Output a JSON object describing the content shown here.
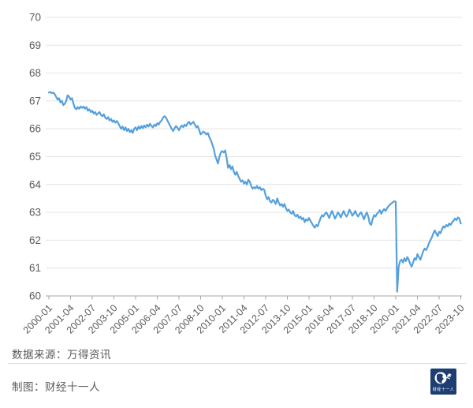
{
  "chart_data": {
    "type": "line",
    "title": "",
    "x_start": "2000-01",
    "x_end": "2023-10",
    "x_frequency": "monthly",
    "x_tick_step_months": 15,
    "x_tick_labels": [
      "2000-01",
      "2001-04",
      "2002-07",
      "2003-10",
      "2005-01",
      "2006-04",
      "2007-07",
      "2008-10",
      "2010-01",
      "2011-04",
      "2012-07",
      "2013-10",
      "2015-01",
      "2016-04",
      "2017-07",
      "2018-10",
      "2020-01",
      "2021-04",
      "2022-07",
      "2023-10"
    ],
    "y_ticks": [
      60,
      61,
      62,
      63,
      64,
      65,
      66,
      67,
      68,
      69,
      70
    ],
    "ylim": [
      60,
      70
    ],
    "grid": true,
    "legend": false,
    "line_color": "#55a0dc",
    "grid_color": "#e4e4e4",
    "axis_color": "#a6a6a6",
    "label_color": "#5c5c5c",
    "values": [
      67.3,
      67.32,
      67.28,
      67.3,
      67.25,
      67.15,
      67.05,
      67.1,
      66.95,
      67.0,
      66.85,
      66.9,
      67.0,
      67.2,
      67.15,
      67.05,
      67.1,
      66.9,
      66.75,
      66.7,
      66.78,
      66.72,
      66.8,
      66.75,
      66.8,
      66.72,
      66.78,
      66.65,
      66.7,
      66.6,
      66.65,
      66.55,
      66.6,
      66.5,
      66.55,
      66.6,
      66.5,
      66.45,
      66.52,
      66.4,
      66.35,
      66.42,
      66.3,
      66.35,
      66.25,
      66.3,
      66.22,
      66.28,
      66.2,
      66.1,
      66.0,
      66.08,
      65.95,
      66.05,
      65.92,
      66.0,
      65.88,
      65.95,
      65.85,
      66.0,
      66.05,
      65.95,
      66.08,
      66.0,
      66.1,
      66.02,
      66.12,
      66.05,
      66.15,
      66.08,
      66.18,
      66.1,
      66.05,
      66.15,
      66.1,
      66.2,
      66.15,
      66.25,
      66.3,
      66.4,
      66.45,
      66.4,
      66.3,
      66.2,
      66.1,
      66.0,
      65.92,
      66.02,
      66.1,
      66.03,
      65.95,
      66.05,
      66.12,
      66.06,
      66.15,
      66.1,
      66.2,
      66.25,
      66.15,
      66.2,
      66.25,
      66.15,
      66.05,
      66.1,
      65.95,
      65.8,
      65.85,
      65.9,
      65.85,
      65.8,
      65.85,
      65.7,
      65.6,
      65.45,
      65.3,
      65.05,
      64.9,
      64.75,
      65.0,
      65.15,
      65.2,
      65.15,
      65.22,
      64.95,
      64.6,
      64.7,
      64.55,
      64.65,
      64.45,
      64.35,
      64.45,
      64.3,
      64.2,
      64.1,
      64.15,
      64.03,
      64.1,
      64.0,
      64.17,
      64.1,
      63.95,
      63.85,
      63.9,
      63.86,
      63.95,
      63.85,
      63.9,
      63.8,
      63.85,
      63.81,
      63.6,
      63.47,
      63.55,
      63.4,
      63.35,
      63.45,
      63.4,
      63.3,
      63.5,
      63.35,
      63.25,
      63.3,
      63.2,
      63.3,
      63.15,
      63.05,
      63.1,
      63.0,
      62.95,
      63.05,
      62.9,
      62.85,
      62.92,
      62.8,
      62.85,
      62.75,
      62.8,
      62.65,
      62.75,
      62.7,
      62.8,
      62.7,
      62.6,
      62.52,
      62.45,
      62.55,
      62.5,
      62.65,
      62.8,
      62.9,
      62.85,
      62.95,
      63.0,
      62.9,
      62.8,
      62.95,
      63.05,
      62.9,
      62.78,
      62.88,
      63.0,
      62.92,
      62.82,
      62.95,
      63.05,
      62.92,
      62.85,
      62.95,
      63.1,
      63.0,
      62.88,
      62.95,
      63.05,
      62.92,
      62.85,
      62.95,
      63.0,
      62.88,
      62.75,
      62.9,
      63.0,
      62.85,
      62.6,
      62.55,
      62.75,
      62.9,
      62.85,
      62.95,
      63.0,
      63.08,
      62.95,
      63.05,
      63.12,
      63.05,
      63.15,
      63.22,
      63.28,
      63.32,
      63.36,
      63.4,
      63.38,
      60.15,
      61.05,
      61.25,
      61.3,
      61.2,
      61.35,
      61.25,
      61.4,
      61.3,
      61.15,
      61.05,
      61.2,
      61.35,
      61.3,
      61.5,
      61.4,
      61.3,
      61.45,
      61.6,
      61.7,
      61.65,
      61.75,
      61.9,
      62.0,
      62.1,
      62.25,
      62.35,
      62.25,
      62.15,
      62.3,
      62.25,
      62.4,
      62.5,
      62.45,
      62.55,
      62.5,
      62.6,
      62.55,
      62.65,
      62.7,
      62.78,
      62.72,
      62.82,
      62.78,
      62.6
    ]
  },
  "footer": {
    "source_label": "数据来源：万得资讯",
    "credit_label": "制图：财经十一人",
    "logo_text": "财经十一人"
  }
}
